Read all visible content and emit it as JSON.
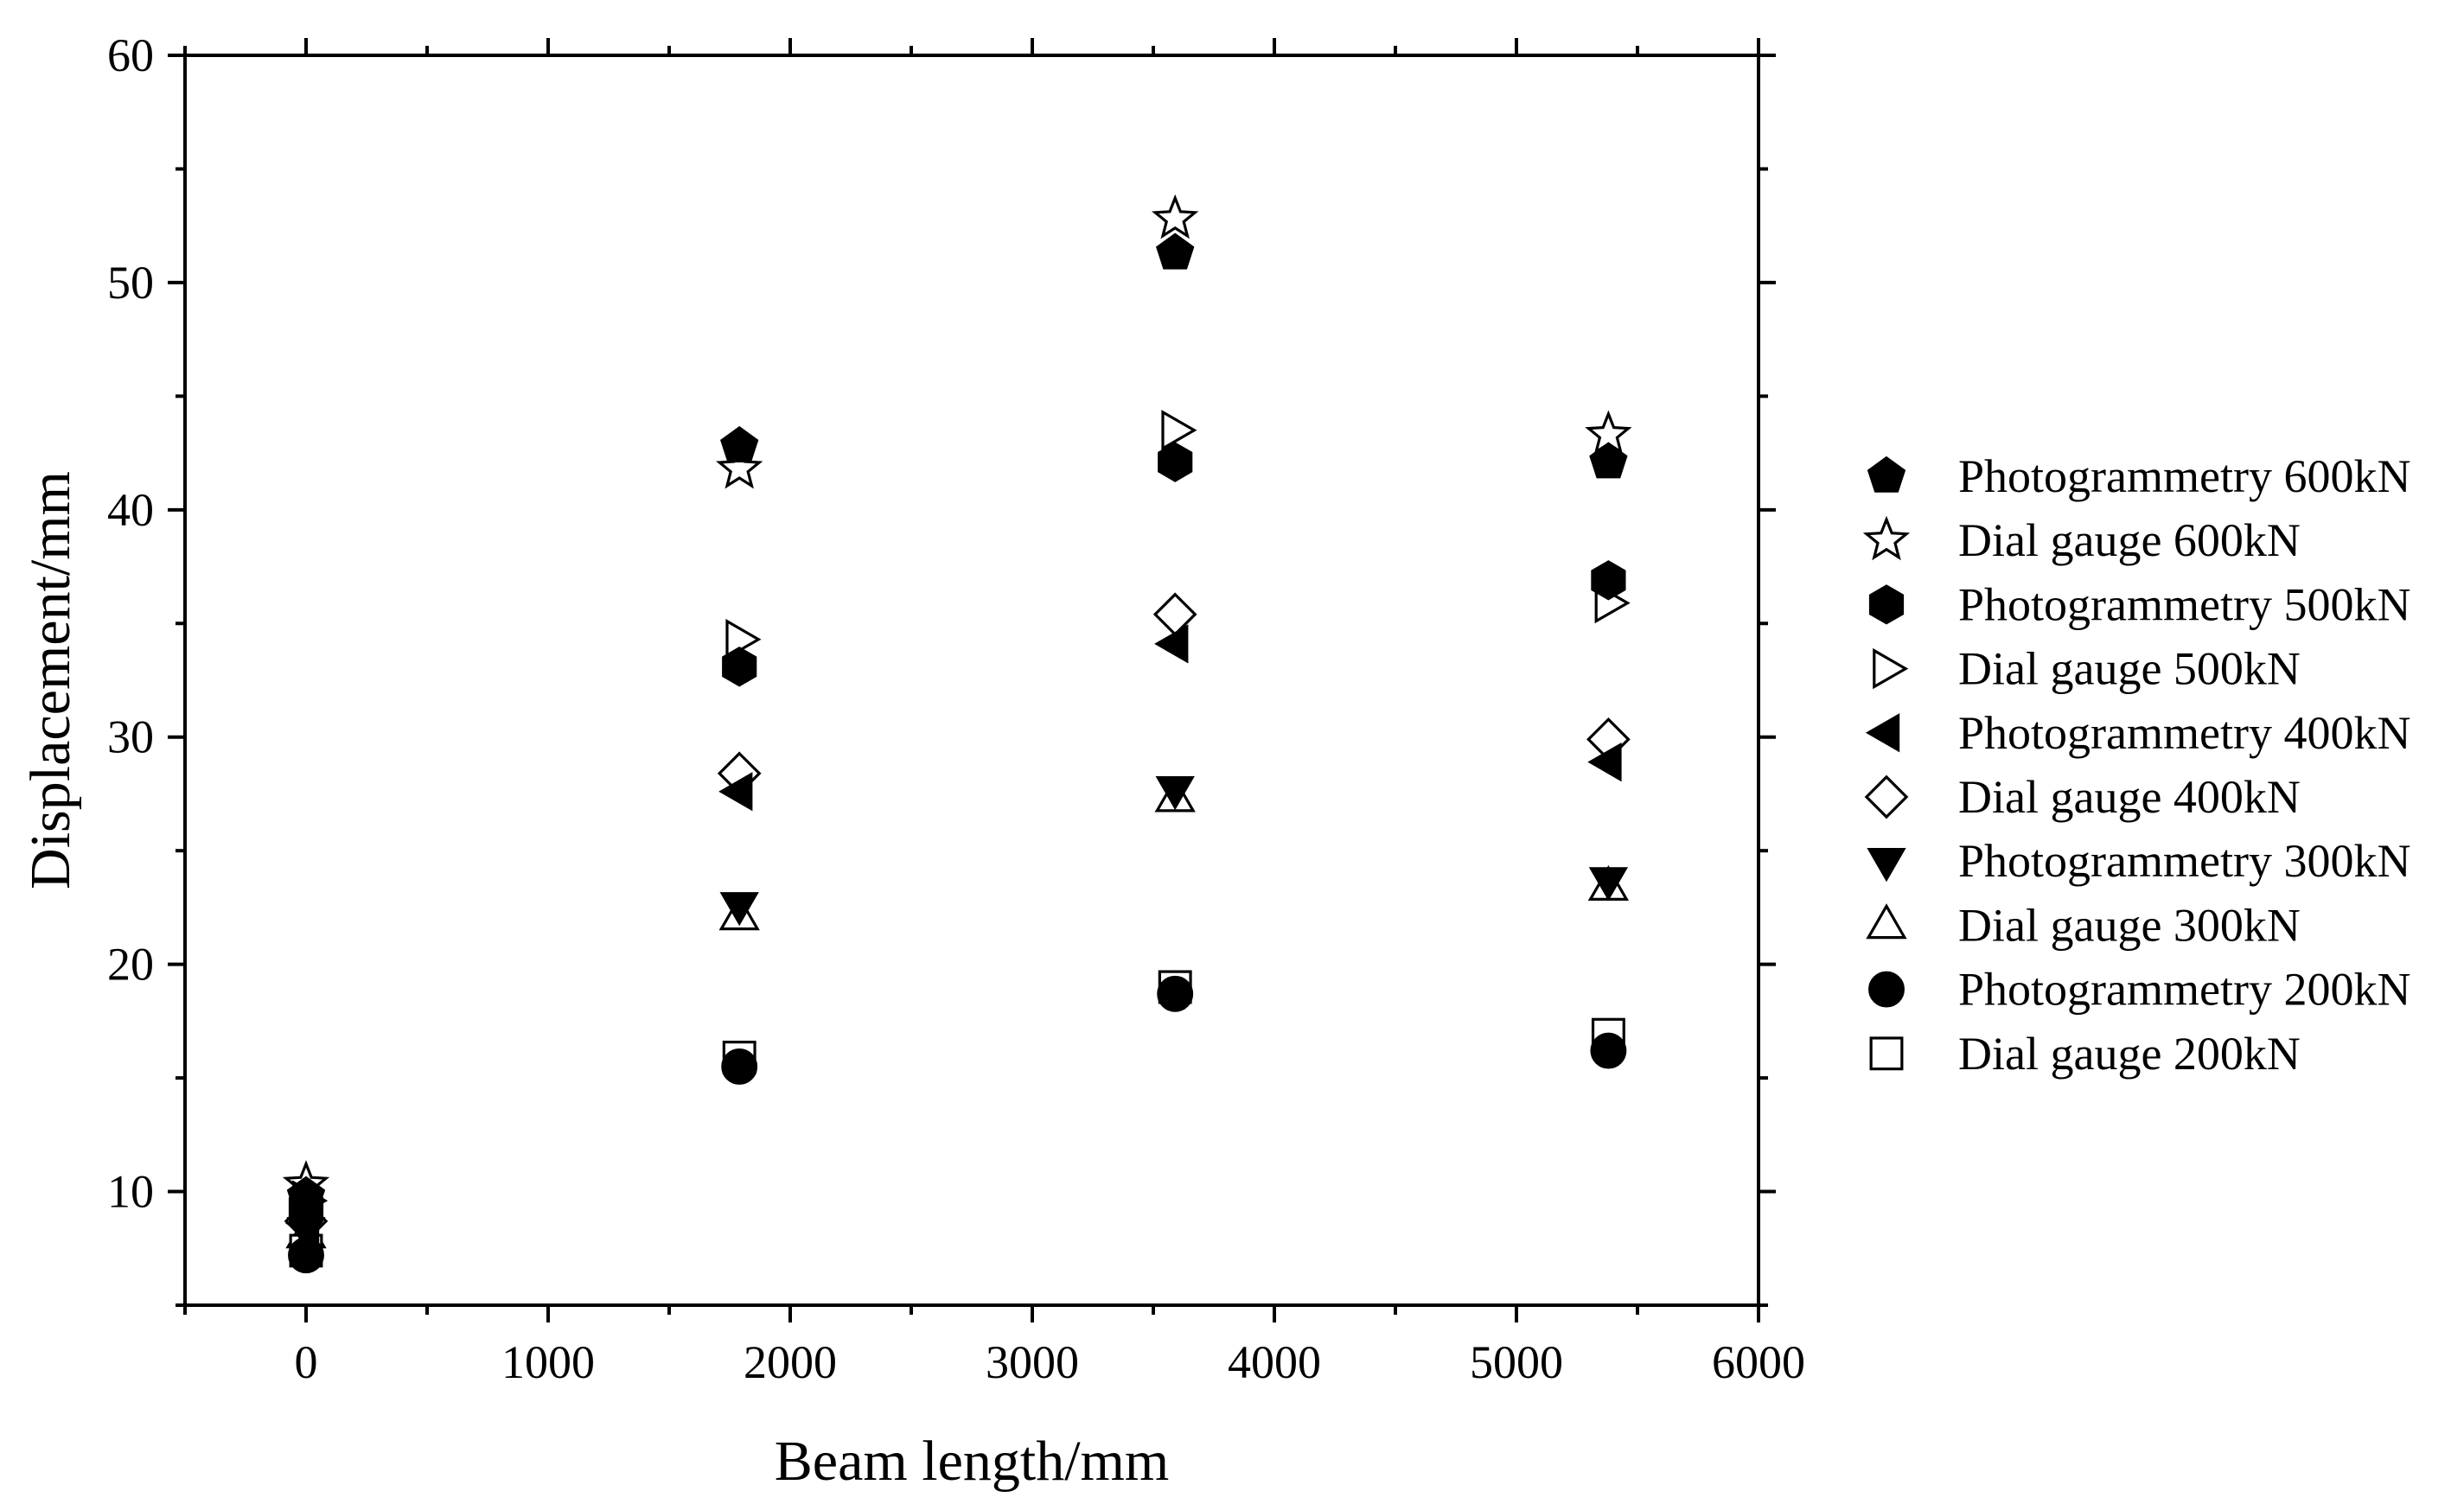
{
  "chart_data": {
    "type": "scatter",
    "xlabel": "Beam length/mm",
    "ylabel": "Displacement/mm",
    "xlim": [
      -500,
      6000
    ],
    "ylim": [
      5,
      60
    ],
    "x_ticks": [
      0,
      1000,
      2000,
      3000,
      4000,
      5000,
      6000
    ],
    "y_ticks": [
      10,
      20,
      30,
      40,
      50,
      60
    ],
    "x_tick_labels": [
      "0",
      "1000",
      "2000",
      "3000",
      "4000",
      "5000",
      "6000"
    ],
    "y_tick_labels": [
      "10",
      "20",
      "30",
      "40",
      "50",
      "60"
    ],
    "grid": false,
    "legend_position": "right",
    "series": [
      {
        "name": "Photogrammetry 600kN",
        "marker": "pentagon",
        "filled": true,
        "x": [
          0,
          1790,
          3590,
          5380
        ],
        "y": [
          9.8,
          42.8,
          51.3,
          42.1
        ]
      },
      {
        "name": "Dial gauge 600kN",
        "marker": "star",
        "filled": false,
        "x": [
          0,
          1790,
          3590,
          5380
        ],
        "y": [
          10.3,
          41.8,
          52.8,
          43.3
        ]
      },
      {
        "name": "Photogrammetry 500kN",
        "marker": "hexagon",
        "filled": true,
        "x": [
          0,
          1790,
          3590,
          5380
        ],
        "y": [
          9.3,
          33.1,
          42.1,
          36.9
        ]
      },
      {
        "name": "Dial gauge 500kN",
        "marker": "triangle-right",
        "filled": false,
        "x": [
          0,
          1790,
          3590,
          5380
        ],
        "y": [
          9.6,
          34.3,
          43.5,
          35.9
        ]
      },
      {
        "name": "Photogrammetry 400kN",
        "marker": "triangle-left",
        "filled": true,
        "x": [
          0,
          1790,
          3590,
          5380
        ],
        "y": [
          8.6,
          27.6,
          34.1,
          28.9
        ]
      },
      {
        "name": "Dial gauge 400kN",
        "marker": "diamond",
        "filled": false,
        "x": [
          0,
          1790,
          3590,
          5380
        ],
        "y": [
          8.7,
          28.4,
          35.4,
          29.9
        ]
      },
      {
        "name": "Photogrammetry 300kN",
        "marker": "triangle-down",
        "filled": true,
        "x": [
          0,
          1790,
          3590,
          5380
        ],
        "y": [
          8.3,
          22.6,
          27.7,
          23.7
        ]
      },
      {
        "name": "Dial gauge 300kN",
        "marker": "triangle-up",
        "filled": false,
        "x": [
          0,
          1790,
          3590,
          5380
        ],
        "y": [
          8.1,
          22.1,
          27.3,
          23.4
        ]
      },
      {
        "name": "Photogrammetry 200kN",
        "marker": "circle",
        "filled": true,
        "x": [
          0,
          1790,
          3590,
          5380
        ],
        "y": [
          7.2,
          15.5,
          18.7,
          16.2
        ]
      },
      {
        "name": "Dial gauge 200kN",
        "marker": "square",
        "filled": false,
        "x": [
          0,
          1790,
          3590,
          5380
        ],
        "y": [
          7.4,
          15.9,
          19.0,
          16.9
        ]
      }
    ]
  }
}
